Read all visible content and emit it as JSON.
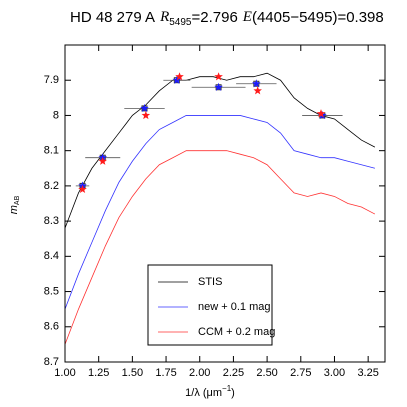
{
  "chart_data": {
    "type": "line",
    "title": [
      "HD 48 279 A",
      "R",
      "5495",
      "=2.796",
      "E",
      "(4405−5495)=0.398"
    ],
    "x_label": [
      "1/λ (μm",
      "−1",
      ")"
    ],
    "y_label": [
      "m",
      "AB"
    ],
    "xlim": [
      1.0,
      3.375
    ],
    "ylim": [
      7.8,
      8.7
    ],
    "y_inverted": true,
    "xticks": [
      {
        "value": 1.0,
        "label": "1.00"
      },
      {
        "value": 1.25,
        "label": "1.25"
      },
      {
        "value": 1.5,
        "label": "1.50"
      },
      {
        "value": 1.75,
        "label": "1.75"
      },
      {
        "value": 2.0,
        "label": "2.00"
      },
      {
        "value": 2.25,
        "label": "2.25"
      },
      {
        "value": 2.5,
        "label": "2.50"
      },
      {
        "value": 2.75,
        "label": "2.75"
      },
      {
        "value": 3.0,
        "label": "3.00"
      },
      {
        "value": 3.25,
        "label": "3.25"
      }
    ],
    "yticks": [
      7.9,
      8.0,
      8.1,
      8.2,
      8.3,
      8.4,
      8.5,
      8.6,
      8.7
    ],
    "x": [
      1.0,
      1.1,
      1.2,
      1.3,
      1.4,
      1.5,
      1.6,
      1.7,
      1.8,
      1.9,
      2.0,
      2.1,
      2.2,
      2.3,
      2.4,
      2.5,
      2.6,
      2.7,
      2.8,
      2.9,
      3.0,
      3.1,
      3.2,
      3.3
    ],
    "series": [
      {
        "name": "STIS",
        "color": "#000000",
        "values": [
          8.32,
          8.22,
          8.15,
          8.1,
          8.05,
          8.0,
          7.97,
          7.93,
          7.9,
          7.9,
          7.89,
          7.89,
          7.9,
          7.89,
          7.89,
          7.88,
          7.9,
          7.95,
          7.98,
          8.0,
          8.01,
          8.04,
          8.07,
          8.09
        ]
      },
      {
        "name": "new + 0.1 mag",
        "color": "#3333ff",
        "values": [
          8.55,
          8.45,
          8.36,
          8.27,
          8.19,
          8.13,
          8.08,
          8.04,
          8.02,
          8.0,
          8.0,
          8.0,
          8.0,
          8.0,
          8.01,
          8.02,
          8.05,
          8.1,
          8.11,
          8.12,
          8.12,
          8.13,
          8.14,
          8.15
        ]
      },
      {
        "name": "CCM + 0.2 mag",
        "color": "#ff3333",
        "values": [
          8.65,
          8.55,
          8.46,
          8.37,
          8.29,
          8.23,
          8.18,
          8.14,
          8.12,
          8.1,
          8.1,
          8.1,
          8.1,
          8.11,
          8.12,
          8.14,
          8.18,
          8.22,
          8.23,
          8.22,
          8.23,
          8.25,
          8.26,
          8.28
        ]
      }
    ],
    "points": [
      {
        "color": "#1a1aff",
        "x": [
          1.13,
          1.28,
          1.59,
          1.83,
          2.14,
          2.42,
          2.91
        ],
        "values": [
          8.2,
          8.12,
          7.98,
          7.9,
          7.92,
          7.91,
          8.0
        ],
        "xerr": [
          0.05,
          0.13,
          0.15,
          0.1,
          0.2,
          0.15,
          0.15
        ]
      },
      {
        "color": "#ff1a1a",
        "x": [
          1.13,
          1.28,
          1.6,
          1.85,
          2.14,
          2.43,
          2.9
        ],
        "values": [
          8.21,
          8.13,
          8.0,
          7.89,
          7.89,
          7.93,
          7.995
        ]
      }
    ],
    "legend": "lower center"
  }
}
